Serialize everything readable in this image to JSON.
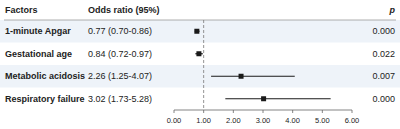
{
  "chart_data": {
    "type": "forest",
    "columns": [
      "Factors",
      "Odds ratio (95%)",
      "p"
    ],
    "categories": [
      "1-minute Apgar",
      "Gestational age",
      "Metabolic acidosis",
      "Respiratory failure"
    ],
    "values": [
      0.77,
      0.84,
      2.26,
      3.02
    ],
    "value_labels": [
      "0.77 (0.70-0.86)",
      "0.84 (0.72-0.97)",
      "2.26 (1.25-4.07)",
      "3.02 (1.73-5.28)"
    ],
    "ci_low": [
      0.7,
      0.72,
      1.25,
      1.73
    ],
    "ci_high": [
      0.86,
      0.97,
      4.07,
      5.28
    ],
    "p_values": [
      "0.000",
      "0.022",
      "0.007",
      "0.000"
    ],
    "ref_line": 1.0,
    "color": "#1a1a1a",
    "xlim": [
      0.0,
      6.0
    ],
    "xticks": [
      {
        "value": 0.0,
        "label": "0.00"
      },
      {
        "value": 1.0,
        "label": "1.00"
      },
      {
        "value": 2.0,
        "label": "2.00"
      },
      {
        "value": 3.0,
        "label": "3.00"
      },
      {
        "value": 4.0,
        "label": "4.00"
      },
      {
        "value": 5.0,
        "label": "5.00"
      },
      {
        "value": 6.0,
        "label": "6.00"
      }
    ]
  }
}
